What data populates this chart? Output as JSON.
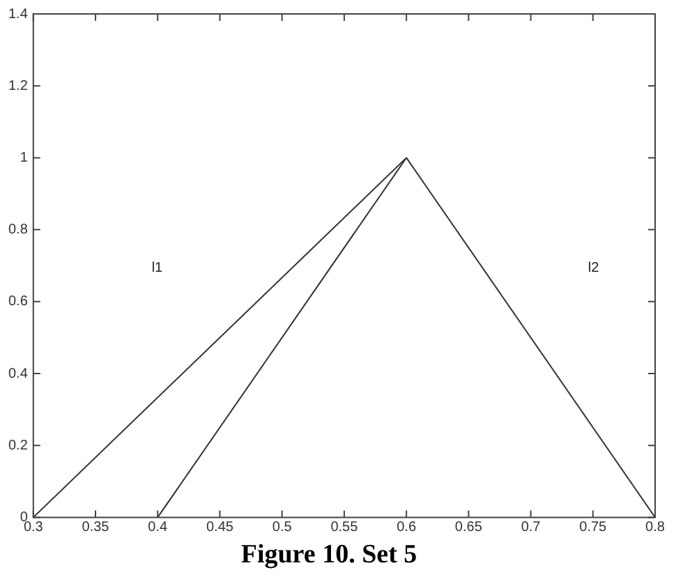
{
  "chart_data": {
    "type": "line",
    "title": "Figure 10. Set 5",
    "series": [
      {
        "color": "#333333",
        "x": [
          0.3,
          0.6
        ],
        "values": [
          0,
          1
        ]
      },
      {
        "color": "#333333",
        "x": [
          0.4,
          0.6
        ],
        "values": [
          0,
          1
        ]
      },
      {
        "color": "#333333",
        "x": [
          0.6,
          0.8
        ],
        "values": [
          1,
          0
        ]
      }
    ],
    "xlim": [
      0.3,
      0.8
    ],
    "xticks": [
      0.3,
      0.35,
      0.4,
      0.45,
      0.5,
      0.55,
      0.6,
      0.65,
      0.7,
      0.75,
      0.8
    ],
    "ylim": [
      0,
      1.4
    ],
    "yticks": [
      0,
      0.2,
      0.4,
      0.6,
      0.8,
      1,
      1.2,
      1.4
    ],
    "annotations": [
      "l1",
      "l2"
    ],
    "grid": false,
    "legend": false,
    "marker": "none",
    "line_style": "solid"
  }
}
